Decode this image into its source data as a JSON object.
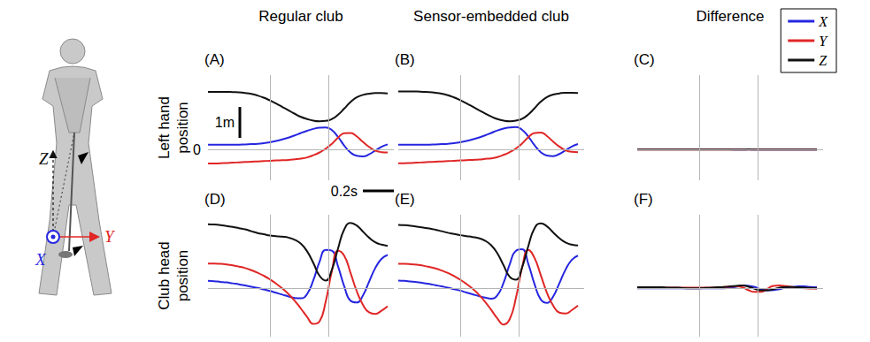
{
  "figure": {
    "column_titles": [
      "Regular club",
      "Sensor-embedded club",
      "Difference"
    ],
    "row_titles": [
      "Left hand position",
      "Club head position"
    ]
  },
  "diagram": {
    "axes": [
      {
        "label": "X",
        "color": "#2626e0"
      },
      {
        "label": "Y",
        "color": "#e02626"
      },
      {
        "label": "Z",
        "color": "#111111"
      }
    ]
  },
  "chart_data": [
    {
      "type": "line",
      "title": "(A)",
      "x": [
        0,
        0.04,
        0.08,
        0.12,
        0.16,
        0.2,
        0.24,
        0.28,
        0.32,
        0.36,
        0.4,
        0.44,
        0.48,
        0.52,
        0.56,
        0.6,
        0.64,
        0.68,
        0.72,
        0.76,
        0.8,
        0.84,
        0.88,
        0.92,
        0.96,
        1,
        1.04,
        1.08,
        1.12,
        1.16
      ],
      "xlim": [
        0,
        1.2
      ],
      "ylim": [
        -1,
        2.4
      ],
      "yticks": [
        0
      ],
      "tick_labels": "y",
      "grid": true,
      "event_times": [
        0.4,
        0.78
      ],
      "scale_bars": [
        {
          "axis": "y",
          "value": 1,
          "label": "1m"
        },
        {
          "axis": "x",
          "value": 0.2,
          "label": "0.2s"
        }
      ],
      "series": [
        {
          "name": "X",
          "color": "#2626e0",
          "values": [
            0.15,
            0.15,
            0.15,
            0.15,
            0.15,
            0.15,
            0.16,
            0.17,
            0.18,
            0.2,
            0.23,
            0.27,
            0.32,
            0.38,
            0.45,
            0.53,
            0.6,
            0.66,
            0.7,
            0.71,
            0.62,
            0.4,
            0.12,
            -0.1,
            -0.21,
            -0.23,
            -0.16,
            -0.04,
            0.08,
            0.16
          ]
        },
        {
          "name": "Y",
          "color": "#e02626",
          "values": [
            -0.46,
            -0.46,
            -0.45,
            -0.44,
            -0.43,
            -0.42,
            -0.41,
            -0.4,
            -0.39,
            -0.38,
            -0.37,
            -0.36,
            -0.35,
            -0.34,
            -0.32,
            -0.3,
            -0.26,
            -0.19,
            -0.1,
            0.02,
            0.18,
            0.38,
            0.52,
            0.53,
            0.42,
            0.24,
            0.08,
            -0.04,
            -0.09,
            -0.1
          ]
        },
        {
          "name": "Z",
          "color": "#111111",
          "values": [
            1.86,
            1.86,
            1.86,
            1.86,
            1.85,
            1.84,
            1.82,
            1.79,
            1.74,
            1.67,
            1.58,
            1.48,
            1.37,
            1.26,
            1.15,
            1.05,
            0.98,
            0.93,
            0.91,
            0.92,
            0.98,
            1.12,
            1.32,
            1.53,
            1.68,
            1.76,
            1.8,
            1.82,
            1.82,
            1.81
          ]
        }
      ]
    },
    {
      "type": "line",
      "title": "(B)",
      "x": [
        0,
        0.04,
        0.08,
        0.12,
        0.16,
        0.2,
        0.24,
        0.28,
        0.32,
        0.36,
        0.4,
        0.44,
        0.48,
        0.52,
        0.56,
        0.6,
        0.64,
        0.68,
        0.72,
        0.76,
        0.8,
        0.84,
        0.88,
        0.92,
        0.96,
        1,
        1.04,
        1.08,
        1.12,
        1.16
      ],
      "xlim": [
        0,
        1.2
      ],
      "ylim": [
        -1,
        2.4
      ],
      "yticks": [
        0
      ],
      "tick_labels": false,
      "grid": true,
      "event_times": [
        0.4,
        0.78
      ],
      "series": [
        {
          "name": "X",
          "color": "#2626e0",
          "values": [
            0.15,
            0.15,
            0.15,
            0.15,
            0.15,
            0.15,
            0.16,
            0.17,
            0.18,
            0.2,
            0.23,
            0.27,
            0.32,
            0.38,
            0.45,
            0.53,
            0.61,
            0.67,
            0.71,
            0.72,
            0.63,
            0.41,
            0.13,
            -0.09,
            -0.2,
            -0.22,
            -0.15,
            -0.03,
            0.09,
            0.17
          ]
        },
        {
          "name": "Y",
          "color": "#e02626",
          "values": [
            -0.45,
            -0.45,
            -0.44,
            -0.43,
            -0.42,
            -0.41,
            -0.4,
            -0.39,
            -0.38,
            -0.37,
            -0.36,
            -0.35,
            -0.34,
            -0.33,
            -0.31,
            -0.29,
            -0.25,
            -0.18,
            -0.09,
            0.03,
            0.19,
            0.39,
            0.53,
            0.54,
            0.43,
            0.25,
            0.09,
            -0.03,
            -0.08,
            -0.09
          ]
        },
        {
          "name": "Z",
          "color": "#111111",
          "values": [
            1.87,
            1.87,
            1.87,
            1.87,
            1.86,
            1.85,
            1.83,
            1.8,
            1.75,
            1.68,
            1.59,
            1.49,
            1.38,
            1.27,
            1.16,
            1.06,
            0.98,
            0.93,
            0.91,
            0.93,
            0.99,
            1.13,
            1.33,
            1.54,
            1.69,
            1.77,
            1.81,
            1.83,
            1.83,
            1.82
          ]
        }
      ]
    },
    {
      "type": "line",
      "title": "(C)",
      "x": [
        0,
        0.04,
        0.08,
        0.12,
        0.16,
        0.2,
        0.24,
        0.28,
        0.32,
        0.36,
        0.4,
        0.44,
        0.48,
        0.52,
        0.56,
        0.6,
        0.64,
        0.68,
        0.72,
        0.76,
        0.8,
        0.84,
        0.88,
        0.92,
        0.96,
        1,
        1.04,
        1.08,
        1.12,
        1.16
      ],
      "xlim": [
        0,
        1.2
      ],
      "ylim": [
        -1,
        2.4
      ],
      "yticks": [
        0
      ],
      "tick_labels": false,
      "grid": true,
      "event_times": [
        0.4,
        0.78
      ],
      "legend": "top right",
      "series": [
        {
          "name": "X",
          "color": "#2626e0",
          "values": [
            0,
            0,
            0,
            0,
            0,
            0,
            0,
            0,
            0,
            0,
            0,
            0,
            0,
            0,
            0,
            0,
            -0.01,
            -0.01,
            -0.01,
            -0.01,
            -0.01,
            -0.01,
            -0.01,
            -0.01,
            -0.01,
            -0.01,
            -0.01,
            -0.01,
            -0.01,
            -0.01
          ]
        },
        {
          "name": "Y",
          "color": "#e02626",
          "values": [
            -0.01,
            -0.01,
            -0.01,
            -0.01,
            -0.01,
            -0.01,
            -0.01,
            -0.01,
            -0.01,
            -0.01,
            -0.01,
            -0.01,
            -0.01,
            -0.01,
            -0.01,
            -0.01,
            -0.01,
            -0.01,
            -0.01,
            -0.01,
            -0.01,
            -0.01,
            -0.01,
            -0.01,
            -0.01,
            -0.01,
            -0.01,
            -0.01,
            -0.01,
            -0.01
          ]
        },
        {
          "name": "Z",
          "color": "#111111",
          "values": [
            -0.01,
            -0.01,
            -0.01,
            -0.01,
            -0.01,
            -0.01,
            -0.01,
            -0.01,
            -0.01,
            -0.01,
            -0.01,
            -0.01,
            -0.01,
            -0.01,
            -0.01,
            -0.01,
            -0.01,
            -0.01,
            0,
            -0.01,
            -0.01,
            -0.01,
            -0.01,
            -0.01,
            -0.01,
            -0.01,
            -0.01,
            -0.01,
            -0.01,
            -0.01
          ]
        }
      ]
    },
    {
      "type": "line",
      "title": "(D)",
      "x": [
        0,
        0.04,
        0.08,
        0.12,
        0.16,
        0.2,
        0.24,
        0.28,
        0.32,
        0.36,
        0.4,
        0.44,
        0.48,
        0.52,
        0.56,
        0.6,
        0.64,
        0.68,
        0.72,
        0.76,
        0.8,
        0.84,
        0.88,
        0.92,
        0.96,
        1,
        1.04,
        1.08,
        1.12,
        1.16
      ],
      "xlim": [
        0,
        1.2
      ],
      "ylim": [
        -1.6,
        2.4
      ],
      "yticks": [
        0
      ],
      "tick_labels": false,
      "grid": true,
      "event_times": [
        0.4,
        0.78
      ],
      "series": [
        {
          "name": "X",
          "color": "#2626e0",
          "values": [
            0.23,
            0.22,
            0.2,
            0.18,
            0.15,
            0.12,
            0.08,
            0.04,
            0,
            -0.05,
            -0.1,
            -0.16,
            -0.22,
            -0.28,
            -0.33,
            -0.34,
            -0.2,
            0.25,
            0.85,
            1.25,
            1.22,
            0.7,
            0.05,
            -0.42,
            -0.48,
            -0.25,
            0.2,
            0.65,
            0.95,
            1.08
          ]
        },
        {
          "name": "Y",
          "color": "#e02626",
          "values": [
            0.8,
            0.8,
            0.79,
            0.77,
            0.74,
            0.7,
            0.65,
            0.58,
            0.5,
            0.4,
            0.28,
            0.14,
            -0.02,
            -0.2,
            -0.42,
            -0.68,
            -0.95,
            -1.18,
            -1.1,
            -0.45,
            0.55,
            1.22,
            1.05,
            0.5,
            -0.1,
            -0.55,
            -0.8,
            -0.85,
            -0.75,
            -0.6
          ]
        },
        {
          "name": "Z",
          "color": "#111111",
          "values": [
            2.09,
            2.08,
            2.06,
            2.03,
            2,
            1.96,
            1.92,
            1.86,
            1.8,
            1.76,
            1.72,
            1.7,
            1.68,
            1.65,
            1.58,
            1.45,
            1.2,
            0.82,
            0.4,
            0.24,
            0.6,
            1.3,
            1.92,
            2.13,
            2.05,
            1.85,
            1.65,
            1.5,
            1.42,
            1.38
          ]
        }
      ]
    },
    {
      "type": "line",
      "title": "(E)",
      "x": [
        0,
        0.04,
        0.08,
        0.12,
        0.16,
        0.2,
        0.24,
        0.28,
        0.32,
        0.36,
        0.4,
        0.44,
        0.48,
        0.52,
        0.56,
        0.6,
        0.64,
        0.68,
        0.72,
        0.76,
        0.8,
        0.84,
        0.88,
        0.92,
        0.96,
        1,
        1.04,
        1.08,
        1.12,
        1.16
      ],
      "xlim": [
        0,
        1.2
      ],
      "ylim": [
        -1.6,
        2.4
      ],
      "yticks": [
        0
      ],
      "tick_labels": false,
      "grid": true,
      "event_times": [
        0.4,
        0.78
      ],
      "series": [
        {
          "name": "X",
          "color": "#2626e0",
          "values": [
            0.24,
            0.23,
            0.21,
            0.19,
            0.16,
            0.13,
            0.09,
            0.05,
            0.01,
            -0.04,
            -0.09,
            -0.15,
            -0.21,
            -0.27,
            -0.32,
            -0.35,
            -0.24,
            0.17,
            0.78,
            1.22,
            1.27,
            0.78,
            0.12,
            -0.38,
            -0.49,
            -0.28,
            0.15,
            0.6,
            0.92,
            1.06
          ]
        },
        {
          "name": "Y",
          "color": "#e02626",
          "values": [
            0.79,
            0.79,
            0.78,
            0.76,
            0.73,
            0.69,
            0.64,
            0.57,
            0.49,
            0.39,
            0.27,
            0.13,
            -0.03,
            -0.22,
            -0.45,
            -0.72,
            -1,
            -1.2,
            -1.02,
            -0.32,
            0.68,
            1.25,
            0.98,
            0.42,
            -0.16,
            -0.58,
            -0.81,
            -0.84,
            -0.73,
            -0.58
          ]
        },
        {
          "name": "Z",
          "color": "#111111",
          "values": [
            2.07,
            2.06,
            2.04,
            2.01,
            1.98,
            1.95,
            1.91,
            1.86,
            1.81,
            1.77,
            1.73,
            1.7,
            1.67,
            1.63,
            1.55,
            1.4,
            1.13,
            0.74,
            0.36,
            0.27,
            0.68,
            1.38,
            1.96,
            2.12,
            2.02,
            1.82,
            1.63,
            1.49,
            1.42,
            1.39
          ]
        }
      ]
    },
    {
      "type": "line",
      "title": "(F)",
      "x": [
        0,
        0.04,
        0.08,
        0.12,
        0.16,
        0.2,
        0.24,
        0.28,
        0.32,
        0.36,
        0.4,
        0.44,
        0.48,
        0.52,
        0.56,
        0.6,
        0.64,
        0.68,
        0.72,
        0.76,
        0.8,
        0.84,
        0.88,
        0.92,
        0.96,
        1,
        1.04,
        1.08,
        1.12,
        1.16
      ],
      "xlim": [
        0,
        1.2
      ],
      "ylim": [
        -1.6,
        2.4
      ],
      "yticks": [
        0
      ],
      "tick_labels": false,
      "grid": true,
      "event_times": [
        0.4,
        0.78
      ],
      "series": [
        {
          "name": "X",
          "color": "#2626e0",
          "values": [
            -0.01,
            -0.01,
            -0.01,
            -0.01,
            -0.01,
            -0.01,
            -0.01,
            -0.01,
            -0.01,
            -0.01,
            -0.01,
            -0.01,
            -0.01,
            -0.01,
            -0.01,
            0.01,
            0.04,
            0.08,
            0.07,
            0.03,
            -0.05,
            -0.08,
            -0.07,
            -0.04,
            0.01,
            0.03,
            0.05,
            0.05,
            0.03,
            0.02
          ]
        },
        {
          "name": "Y",
          "color": "#e02626",
          "values": [
            0.01,
            0.01,
            0.01,
            0.01,
            0.01,
            0.01,
            0.01,
            0.01,
            0.01,
            0.01,
            0.01,
            0.01,
            0.01,
            0.02,
            0.03,
            0.04,
            0.05,
            0.02,
            -0.08,
            -0.13,
            -0.13,
            -0.03,
            0.07,
            0.08,
            0.06,
            0.03,
            0.01,
            -0.01,
            -0.02,
            -0.02
          ]
        },
        {
          "name": "Z",
          "color": "#111111",
          "values": [
            0.02,
            0.02,
            0.02,
            0.02,
            0.02,
            0.01,
            0.01,
            0,
            -0.01,
            -0.01,
            -0.01,
            0,
            0.01,
            0.02,
            0.03,
            0.05,
            0.07,
            0.08,
            0.04,
            -0.03,
            -0.08,
            -0.08,
            -0.04,
            0.01,
            0.03,
            0.03,
            0.02,
            0.01,
            0,
            -0.01
          ]
        }
      ]
    }
  ]
}
